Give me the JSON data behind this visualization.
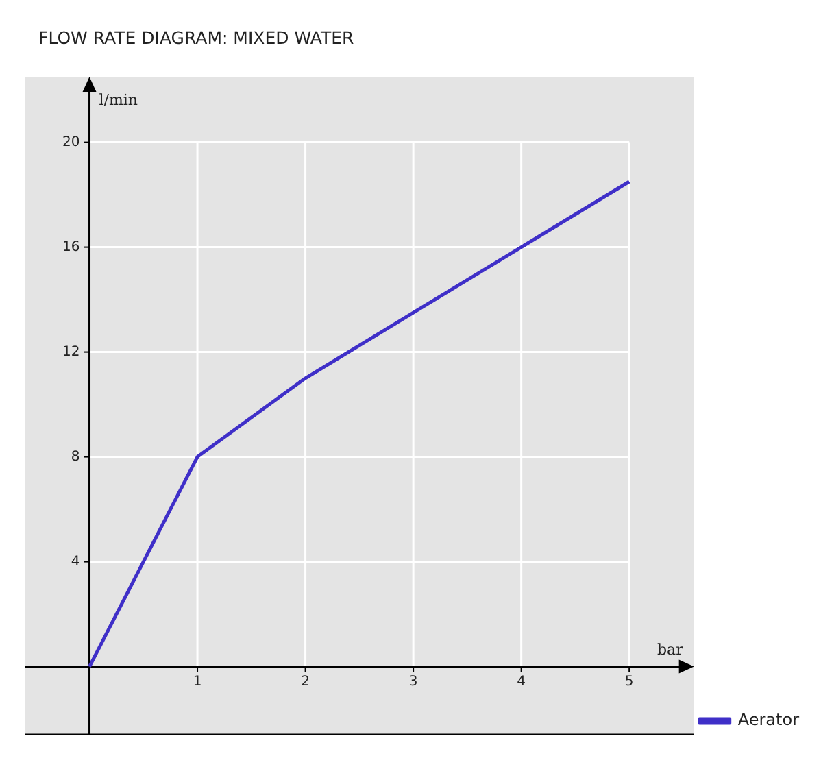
{
  "chart_data": {
    "type": "line",
    "title": "FLOW RATE DIAGRAM: MIXED WATER",
    "xlabel": "bar",
    "ylabel": "l/min",
    "x": [
      0,
      1,
      2,
      3,
      4,
      5
    ],
    "series": [
      {
        "name": "Aerator",
        "color": "#3f2fc8",
        "values": [
          0,
          8,
          11,
          13.5,
          16,
          18.5
        ]
      }
    ],
    "xlim": [
      -0.6,
      5.6
    ],
    "ylim": [
      -2.6,
      22.5
    ],
    "xticks": [
      1,
      2,
      3,
      4,
      5
    ],
    "yticks": [
      4,
      8,
      12,
      16,
      20
    ],
    "grid": true,
    "legend": "bottom right",
    "marker": "none",
    "line_style": "solid"
  }
}
